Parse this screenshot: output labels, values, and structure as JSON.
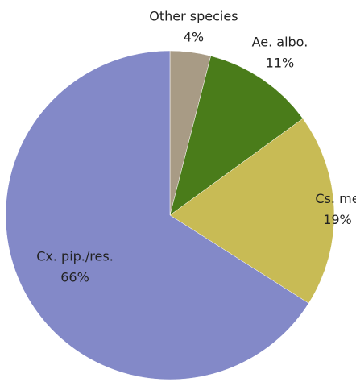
{
  "chart_data": {
    "type": "pie",
    "categories": [
      "Other species",
      "Ae. albo.",
      "Cs. me",
      "Cx. pip./res."
    ],
    "values": [
      4,
      11,
      19,
      66
    ],
    "value_labels": [
      "4%",
      "11%",
      "19%",
      "66%"
    ],
    "colors": [
      "#a89b85",
      "#4a7c1a",
      "#c8bb55",
      "#8389c8"
    ]
  }
}
